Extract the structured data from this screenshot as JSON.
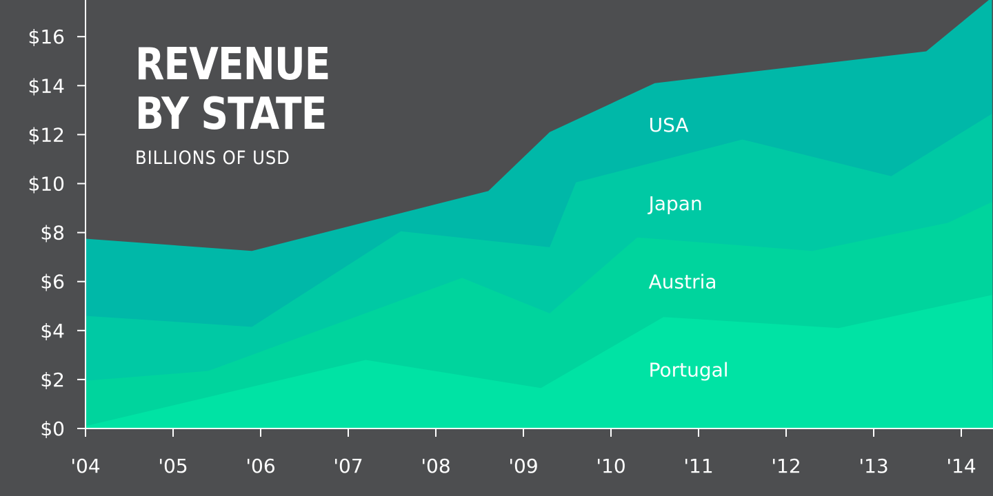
{
  "chart_data": {
    "type": "area",
    "stacked": true,
    "title_lines": [
      "REVENUE",
      "BY STATE"
    ],
    "subtitle": "BILLIONS OF USD",
    "x_categories": [
      "'04",
      "'05",
      "'06",
      "'07",
      "'08",
      "'09",
      "'10",
      "'11",
      "'12",
      "'13",
      "'14"
    ],
    "y_ticks": [
      {
        "value": 0,
        "label": "$0"
      },
      {
        "value": 2,
        "label": "$2"
      },
      {
        "value": 4,
        "label": "$4"
      },
      {
        "value": 6,
        "label": "$6"
      },
      {
        "value": 8,
        "label": "$8"
      },
      {
        "value": 10,
        "label": "$10"
      },
      {
        "value": 12,
        "label": "$12"
      },
      {
        "value": 14,
        "label": "$14"
      },
      {
        "value": 16,
        "label": "$16"
      }
    ],
    "ylim": [
      0,
      17.5
    ],
    "xlim": [
      2004,
      2014.35
    ],
    "series": [
      {
        "name": "Portugal",
        "color": "#00e3a4",
        "label_at": {
          "x": 2010.43,
          "y": 2.4
        },
        "cumulative": [
          [
            2004.0,
            0.1
          ],
          [
            2007.2,
            2.8
          ],
          [
            2009.2,
            1.65
          ],
          [
            2010.6,
            4.55
          ],
          [
            2012.6,
            4.1
          ],
          [
            2014.35,
            5.45
          ]
        ]
      },
      {
        "name": "Austria",
        "color": "#00d49d",
        "label_at": {
          "x": 2010.43,
          "y": 6.0
        },
        "cumulative": [
          [
            2004.0,
            1.95
          ],
          [
            2005.4,
            2.35
          ],
          [
            2008.3,
            6.15
          ],
          [
            2009.3,
            4.7
          ],
          [
            2010.3,
            7.8
          ],
          [
            2012.3,
            7.25
          ],
          [
            2013.85,
            8.4
          ],
          [
            2014.35,
            9.25
          ]
        ]
      },
      {
        "name": "Japan",
        "color": "#00c9a4",
        "label_at": {
          "x": 2010.43,
          "y": 9.2
        },
        "cumulative": [
          [
            2004.0,
            4.6
          ],
          [
            2005.9,
            4.15
          ],
          [
            2007.6,
            8.05
          ],
          [
            2009.3,
            7.4
          ],
          [
            2009.6,
            10.05
          ],
          [
            2011.5,
            11.8
          ],
          [
            2013.2,
            10.3
          ],
          [
            2014.35,
            12.85
          ]
        ]
      },
      {
        "name": "USA",
        "color": "#00b8a8",
        "label_at": {
          "x": 2010.43,
          "y": 12.4
        },
        "cumulative": [
          [
            2004.0,
            7.75
          ],
          [
            2005.9,
            7.25
          ],
          [
            2008.6,
            9.7
          ],
          [
            2009.3,
            12.1
          ],
          [
            2010.5,
            14.1
          ],
          [
            2013.6,
            15.4
          ],
          [
            2014.35,
            17.6
          ]
        ]
      }
    ]
  }
}
